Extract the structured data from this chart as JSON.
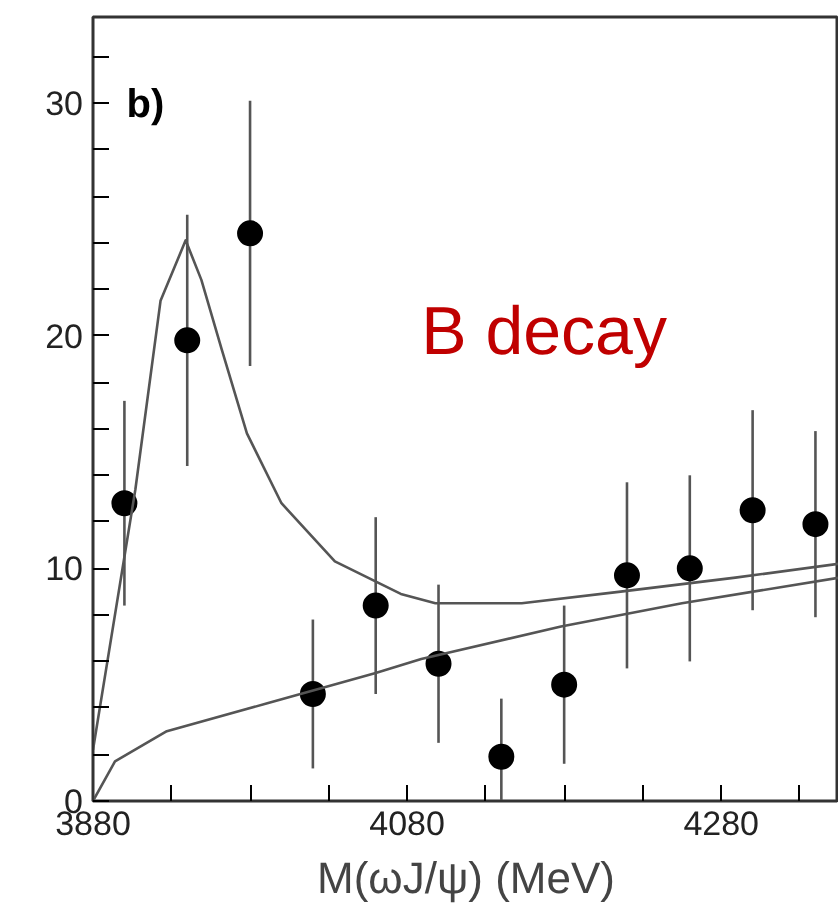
{
  "chart_data": {
    "type": "scatter",
    "xlabel": "M(ωJ/ψ) (MeV)",
    "annotations": [
      "b)",
      "B decay"
    ],
    "xlim": [
      3880,
      4355
    ],
    "ylim": [
      0,
      33.7
    ],
    "xticks": [
      3880,
      {
        "value": 3930,
        "label": null
      },
      {
        "value": 3980,
        "label": null
      },
      {
        "value": 4030,
        "label": null
      },
      4080,
      {
        "value": 4130,
        "label": null
      },
      {
        "value": 4180,
        "label": null
      },
      {
        "value": 4230,
        "label": null
      },
      4280,
      {
        "value": 4330,
        "label": null
      }
    ],
    "yticks": [
      0,
      {
        "value": 2,
        "label": null
      },
      {
        "value": 4,
        "label": null
      },
      {
        "value": 6,
        "label": null
      },
      {
        "value": 8,
        "label": null
      },
      10,
      {
        "value": 12,
        "label": null
      },
      {
        "value": 14,
        "label": null
      },
      {
        "value": 16,
        "label": null
      },
      {
        "value": 18,
        "label": null
      },
      20,
      {
        "value": 22,
        "label": null
      },
      {
        "value": 24,
        "label": null
      },
      {
        "value": 26,
        "label": null
      },
      {
        "value": 28,
        "label": null
      },
      30,
      {
        "value": 32,
        "label": null
      }
    ],
    "grid": false,
    "series": [
      {
        "marker": "circle",
        "color": "#000000",
        "x": [
          3900,
          3940,
          3980,
          4020,
          4060,
          4100,
          4140,
          4180,
          4220,
          4260,
          4300,
          4340
        ],
        "values": [
          12.8,
          19.8,
          24.4,
          4.6,
          8.4,
          5.9,
          1.9,
          5.0,
          9.7,
          10.0,
          12.5,
          11.9
        ],
        "errors": [
          4.4,
          5.4,
          5.7,
          3.2,
          3.8,
          3.4,
          [
            0,
            4.4
          ],
          3.4,
          4.0,
          4.0,
          4.3,
          4.0
        ]
      },
      {
        "type": "line",
        "line_style": "solid",
        "color": "#555555",
        "x": [
          3880,
          3907,
          3923,
          3939,
          3949,
          3962,
          3978,
          4000,
          4034,
          4076,
          4098,
          4153,
          4216,
          4289,
          4355
        ],
        "values": [
          2.2,
          13.4,
          21.5,
          24.1,
          22.4,
          19.4,
          15.8,
          12.8,
          10.3,
          8.9,
          8.5,
          8.5,
          9.0,
          9.6,
          10.2
        ]
      },
      {
        "type": "line",
        "line_style": "solid",
        "color": "#555555",
        "x": [
          3880,
          3894,
          3927,
          3991,
          4060,
          4089,
          4178,
          4255,
          4355
        ],
        "values": [
          0,
          1.7,
          3.0,
          4.2,
          5.5,
          6.1,
          7.5,
          8.5,
          9.6
        ]
      }
    ]
  }
}
